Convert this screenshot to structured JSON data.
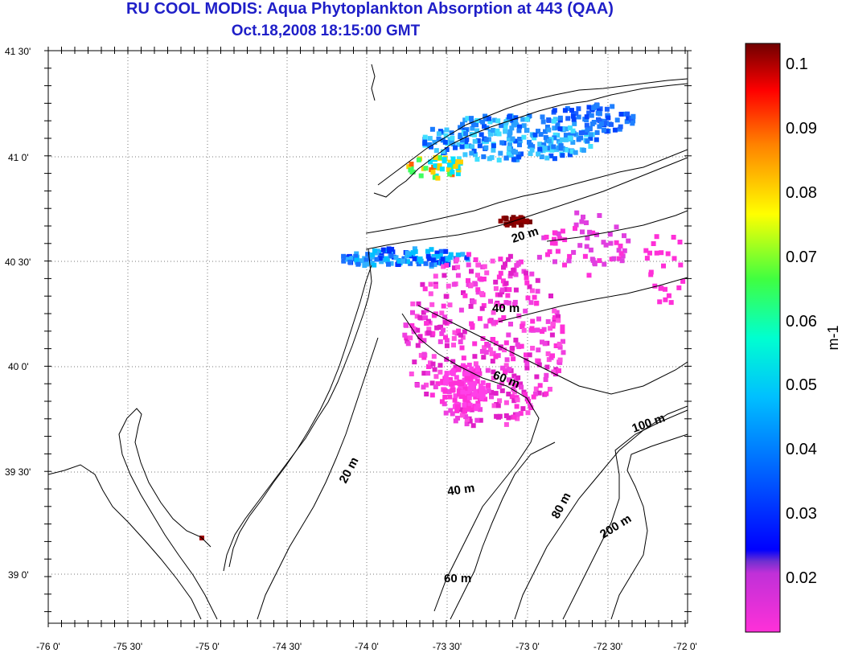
{
  "title": {
    "line1": "RU COOL MODIS: Aqua Phytoplankton Absorption at 443 (QAA)",
    "line2": "Oct.18,2008 18:15:00 GMT"
  },
  "axes": {
    "lon_ticks": [
      "-76 0'",
      "-75 30'",
      "-75 0'",
      "-74 30'",
      "-74 0'",
      "-73 30'",
      "-73 0'",
      "-72 30'",
      "-72 0'"
    ],
    "lat_ticks": [
      "41 30'",
      "41 0'",
      "40 30'",
      "40 0'",
      "39 30'",
      "39 0'"
    ],
    "lon_range": [
      -76.0,
      -72.0
    ],
    "lat_range": [
      38.78,
      41.53
    ],
    "grid": true
  },
  "colorbar": {
    "units": "m-1",
    "ticks": [
      "0.1",
      "0.09",
      "0.08",
      "0.07",
      "0.06",
      "0.05",
      "0.04",
      "0.03",
      "0.02"
    ],
    "range": [
      0.012,
      0.103
    ],
    "colors": [
      "#ff30d0",
      "#7a30d0",
      "#0010ff",
      "#00a0ff",
      "#00ffff",
      "#00ff80",
      "#ffff00",
      "#ff8000",
      "#ff0000",
      "#7a0000"
    ]
  },
  "contour_labels": [
    "20 m",
    "40 m",
    "60 m",
    "20 m",
    "40 m",
    "60 m",
    "100 m",
    "80 m",
    "200 m"
  ],
  "land_color": "#ffffff",
  "line_color": "#000000"
}
